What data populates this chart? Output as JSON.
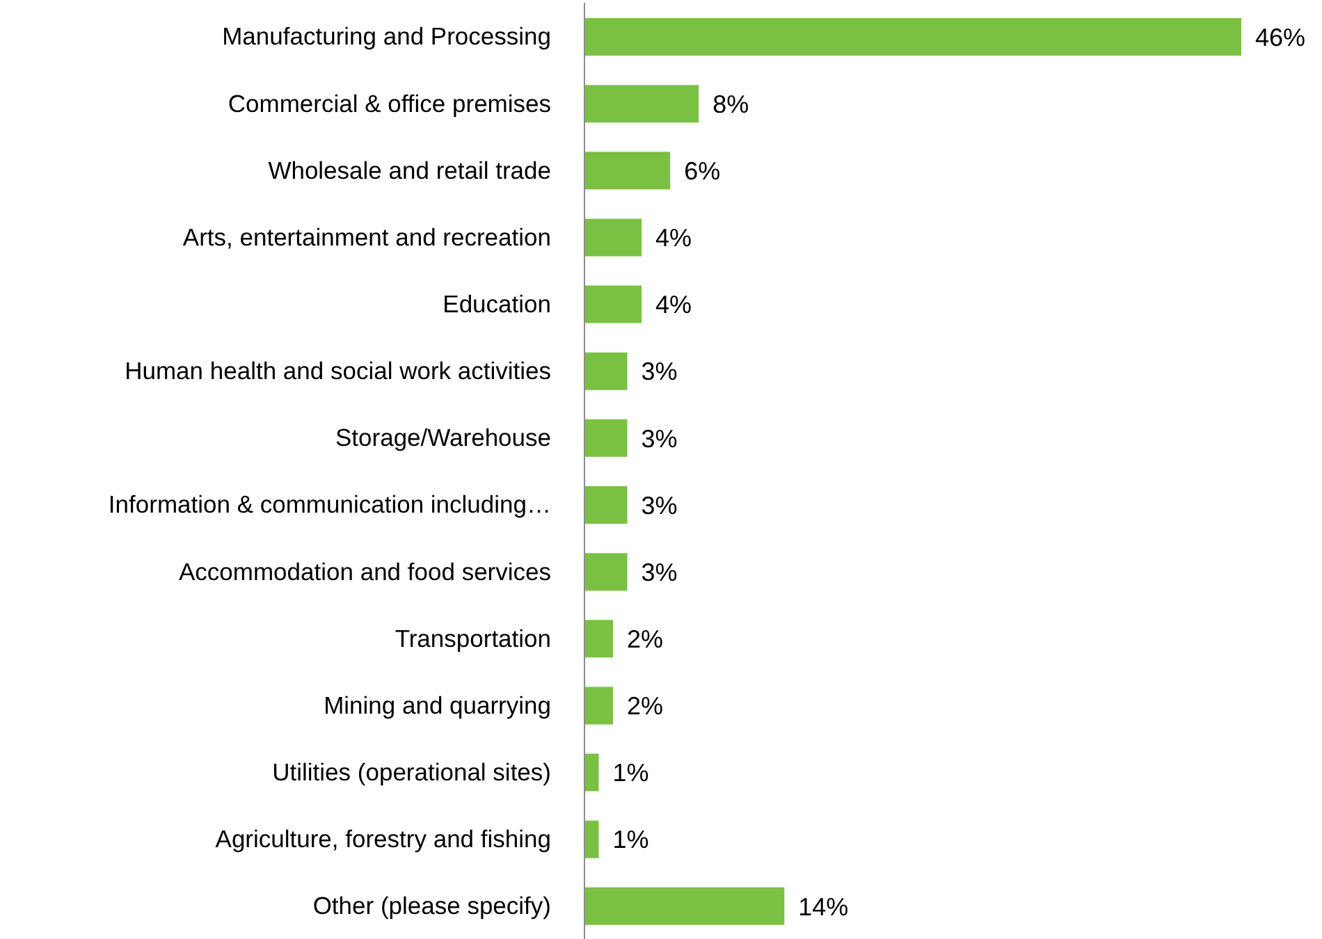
{
  "chart_data": {
    "type": "bar",
    "orientation": "horizontal",
    "categories": [
      "Manufacturing and Processing",
      "Commercial & office premises",
      "Wholesale and retail trade",
      "Arts, entertainment and recreation",
      "Education",
      "Human health and social work activities",
      "Storage/Warehouse",
      "Information & communication including…",
      "Accommodation and food services",
      "Transportation",
      "Mining and quarrying",
      "Utilities (operational sites)",
      "Agriculture, forestry and fishing",
      "Other (please specify)"
    ],
    "values": [
      46,
      8,
      6,
      4,
      4,
      3,
      3,
      3,
      3,
      2,
      2,
      1,
      1,
      14
    ],
    "value_labels": [
      "46%",
      "8%",
      "6%",
      "4%",
      "4%",
      "3%",
      "3%",
      "3%",
      "3%",
      "2%",
      "2%",
      "1%",
      "1%",
      "14%"
    ],
    "color": "#7ac143",
    "grid": false,
    "legend": false
  }
}
